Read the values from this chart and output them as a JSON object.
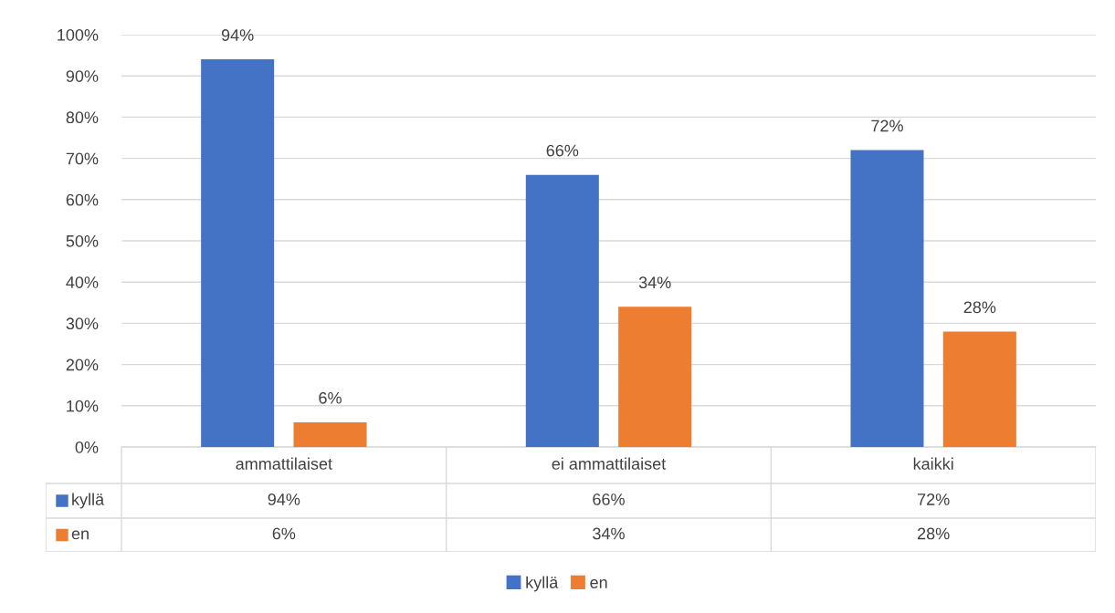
{
  "chart_data": {
    "type": "bar",
    "categories": [
      "ammattilaiset",
      "ei ammattilaiset",
      "kaikki"
    ],
    "series": [
      {
        "name": "kyllä",
        "color": "#4472c4",
        "values": [
          94,
          66,
          72
        ],
        "value_labels": [
          "94%",
          "66%",
          "72%"
        ]
      },
      {
        "name": "en",
        "color": "#ed7d31",
        "values": [
          6,
          34,
          28
        ],
        "value_labels": [
          "6%",
          "34%",
          "28%"
        ]
      }
    ],
    "ylim": [
      0,
      100
    ],
    "yticks": [
      {
        "value": 0,
        "label": "0%"
      },
      {
        "value": 10,
        "label": "10%"
      },
      {
        "value": 20,
        "label": "20%"
      },
      {
        "value": 30,
        "label": "30%"
      },
      {
        "value": 40,
        "label": "40%"
      },
      {
        "value": 50,
        "label": "50%"
      },
      {
        "value": 60,
        "label": "60%"
      },
      {
        "value": 70,
        "label": "70%"
      },
      {
        "value": 80,
        "label": "80%"
      },
      {
        "value": 90,
        "label": "90%"
      },
      {
        "value": 100,
        "label": "100%"
      }
    ],
    "grid": "y",
    "legend": "bottom"
  }
}
